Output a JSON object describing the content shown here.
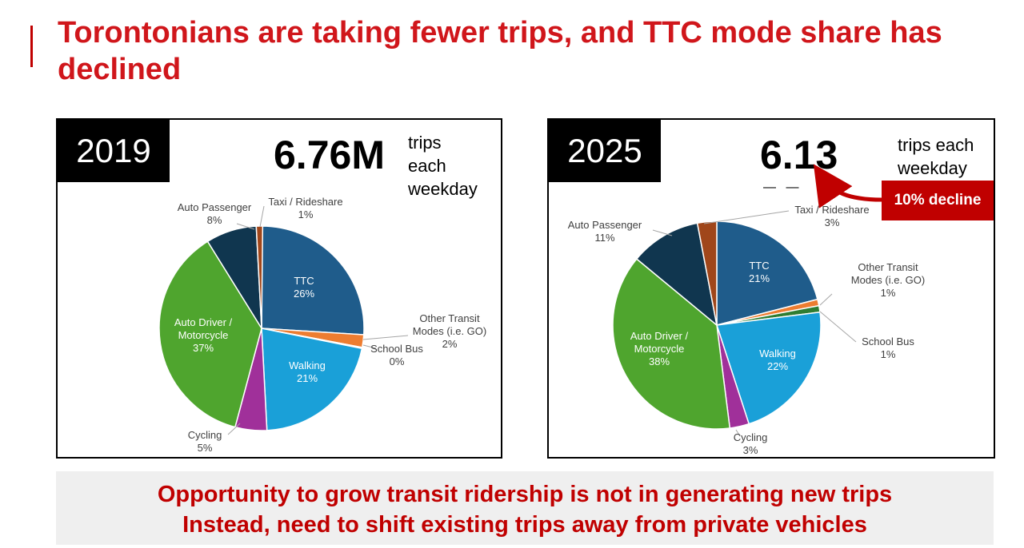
{
  "title": "Torontonians are taking fewer trips, and TTC mode share has declined",
  "colors": {
    "title": "#d0161b",
    "ttc": "#1f5c8b",
    "other_transit": "#ed7d31",
    "school_bus": "#2e7d32",
    "walking": "#1aa0d8",
    "cycling": "#a0309a",
    "auto_driver": "#4fa52e",
    "auto_passenger": "#10364f",
    "taxi": "#a0461a"
  },
  "panel_2019": {
    "year": "2019",
    "big_number": "6.76M",
    "trips_line1": "trips",
    "trips_line2": "each",
    "trips_line3": "weekday"
  },
  "panel_2025": {
    "year": "2025",
    "big_number": "6.13",
    "dashes": "— —",
    "trips_line1": "trips each",
    "trips_line2": "weekday",
    "decline_badge": "10% decline"
  },
  "chart_data": [
    {
      "type": "pie",
      "title": "2019",
      "slices": [
        {
          "key": "ttc",
          "name": "TTC",
          "value": 26
        },
        {
          "key": "other_transit",
          "name": "Other Transit Modes (i.e. GO)",
          "value": 2
        },
        {
          "key": "school_bus",
          "name": "School Bus",
          "value": 0
        },
        {
          "key": "walking",
          "name": "Walking",
          "value": 21
        },
        {
          "key": "cycling",
          "name": "Cycling",
          "value": 5
        },
        {
          "key": "auto_driver",
          "name": "Auto Driver / Motorcycle",
          "value": 37
        },
        {
          "key": "auto_passenger",
          "name": "Auto Passenger",
          "value": 8
        },
        {
          "key": "taxi",
          "name": "Taxi / Rideshare",
          "value": 1
        }
      ],
      "labels": {
        "ttc": [
          "TTC",
          "26%"
        ],
        "other_transit": [
          "Other Transit",
          "Modes (i.e. GO)",
          "2%"
        ],
        "school_bus": [
          "School Bus",
          "0%"
        ],
        "walking": [
          "Walking",
          "21%"
        ],
        "cycling": [
          "Cycling",
          "5%"
        ],
        "auto_driver": [
          "Auto Driver /",
          "Motorcycle",
          "37%"
        ],
        "auto_passenger": [
          "Auto Passenger",
          "8%"
        ],
        "taxi": [
          "Taxi / Rideshare",
          "1%"
        ]
      }
    },
    {
      "type": "pie",
      "title": "2025",
      "slices": [
        {
          "key": "ttc",
          "name": "TTC",
          "value": 21
        },
        {
          "key": "other_transit",
          "name": "Other Transit Modes (i.e. GO)",
          "value": 1
        },
        {
          "key": "school_bus",
          "name": "School Bus",
          "value": 1
        },
        {
          "key": "walking",
          "name": "Walking",
          "value": 22
        },
        {
          "key": "cycling",
          "name": "Cycling",
          "value": 3
        },
        {
          "key": "auto_driver",
          "name": "Auto Driver / Motorcycle",
          "value": 38
        },
        {
          "key": "auto_passenger",
          "name": "Auto Passenger",
          "value": 11
        },
        {
          "key": "taxi",
          "name": "Taxi / Rideshare",
          "value": 3
        }
      ],
      "labels": {
        "ttc": [
          "TTC",
          "21%"
        ],
        "other_transit": [
          "Other Transit",
          "Modes (i.e. GO)",
          "1%"
        ],
        "school_bus": [
          "School Bus",
          "1%"
        ],
        "walking": [
          "Walking",
          "22%"
        ],
        "cycling": [
          "Cycling",
          "3%"
        ],
        "auto_driver": [
          "Auto Driver /",
          "Motorcycle",
          "38%"
        ],
        "auto_passenger": [
          "Auto Passenger",
          "11%"
        ],
        "taxi": [
          "Taxi / Rideshare",
          "3%"
        ]
      }
    }
  ],
  "banner": {
    "line1": "Opportunity to grow transit ridership is not in generating new trips",
    "line2": "Instead, need to shift existing trips away from private vehicles"
  }
}
